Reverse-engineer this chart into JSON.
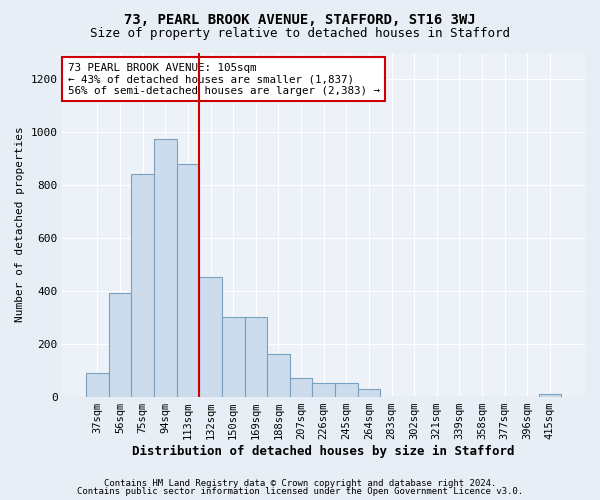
{
  "title1": "73, PEARL BROOK AVENUE, STAFFORD, ST16 3WJ",
  "title2": "Size of property relative to detached houses in Stafford",
  "xlabel": "Distribution of detached houses by size in Stafford",
  "ylabel": "Number of detached properties",
  "categories": [
    "37sqm",
    "56sqm",
    "75sqm",
    "94sqm",
    "113sqm",
    "132sqm",
    "150sqm",
    "169sqm",
    "188sqm",
    "207sqm",
    "226sqm",
    "245sqm",
    "264sqm",
    "283sqm",
    "302sqm",
    "321sqm",
    "339sqm",
    "358sqm",
    "377sqm",
    "396sqm",
    "415sqm"
  ],
  "values": [
    90,
    390,
    840,
    975,
    880,
    450,
    300,
    300,
    160,
    70,
    50,
    50,
    30,
    0,
    0,
    0,
    0,
    0,
    0,
    0,
    10
  ],
  "bar_color": "#ccdcec",
  "bar_edge_color": "#7aA0c0",
  "vline_color": "#cc0000",
  "vline_x_index": 4,
  "annotation_text": "73 PEARL BROOK AVENUE: 105sqm\n← 43% of detached houses are smaller (1,837)\n56% of semi-detached houses are larger (2,383) →",
  "annotation_box_color": "#ffffff",
  "annotation_box_edge": "#cc0000",
  "ylim": [
    0,
    1300
  ],
  "yticks": [
    0,
    200,
    400,
    600,
    800,
    1000,
    1200
  ],
  "footer1": "Contains HM Land Registry data © Crown copyright and database right 2024.",
  "footer2": "Contains public sector information licensed under the Open Government Licence v3.0.",
  "bg_color": "#e8eef5",
  "plot_bg_color": "#edf2f8"
}
